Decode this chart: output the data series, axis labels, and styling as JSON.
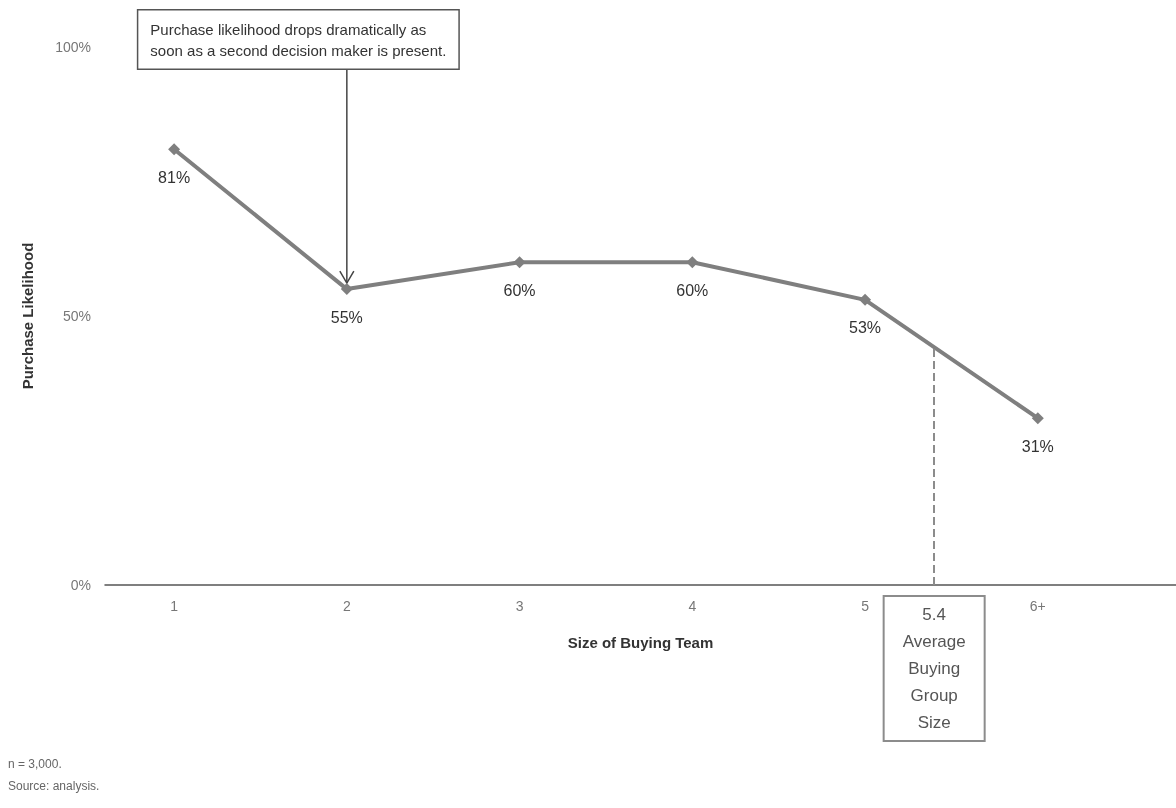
{
  "chart_data": {
    "type": "line",
    "x": [
      1,
      2,
      3,
      4,
      5,
      6
    ],
    "values": [
      81,
      55,
      60,
      60,
      53,
      31
    ],
    "value_labels": [
      "81%",
      "55%",
      "60%",
      "60%",
      "53%",
      "31%"
    ],
    "color": "#7f7f7f",
    "marker": "diamond",
    "line_style": "solid",
    "grid": false,
    "xlim": [
      0.6,
      6.8
    ],
    "xticks": [
      1,
      2,
      3,
      4,
      5,
      {
        "value": 6,
        "label": "6+"
      }
    ],
    "ylim": [
      0,
      100
    ],
    "yticks": [
      {
        "value": 0,
        "label": "0%"
      },
      {
        "value": 50,
        "label": "50%"
      },
      {
        "value": 100,
        "label": "100%"
      }
    ],
    "xlabel": "Size of Buying Team",
    "ylabel": "Purchase Likelihood",
    "ref_lines": [
      {
        "axis": "x",
        "value": 5.4,
        "label": "5.4\nAverage\nBuying\nGroup\nSize",
        "line_style": "dashed",
        "color": "#8c8c8c"
      }
    ],
    "annotations": [
      {
        "text": "Purchase likelihood drops dramatically as\nsoon as a second decision maker is present.",
        "x": 2,
        "y": 55
      },
      "n = 3,000.",
      "Source: analysis."
    ]
  }
}
